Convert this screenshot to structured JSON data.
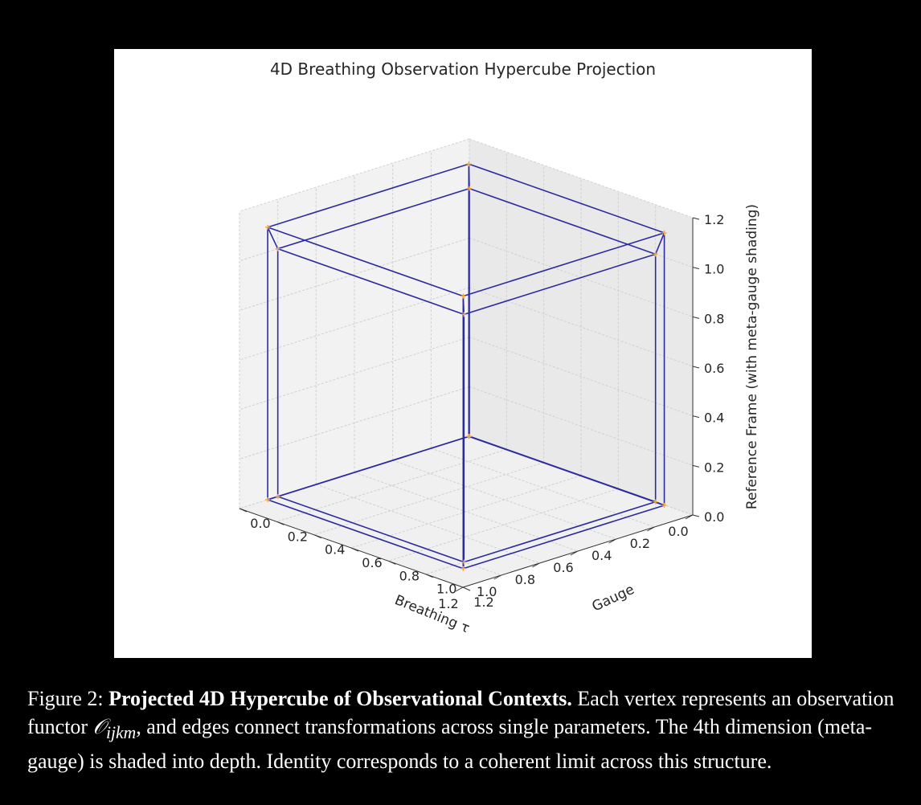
{
  "chart_data": {
    "type": "scatter",
    "title": "4D Breathing Observation Hypercube Projection",
    "xlabel": "Breathing τ",
    "ylabel": "Gauge",
    "zlabel": "Reference Frame (with meta-gauge shading)",
    "x_ticks": [
      "0.0",
      "0.2",
      "0.4",
      "0.6",
      "0.8",
      "1.0",
      "1.2"
    ],
    "y_ticks": [
      "0.0",
      "0.2",
      "0.4",
      "0.6",
      "0.8",
      "1.0",
      "1.2"
    ],
    "z_ticks": [
      "0.0",
      "0.2",
      "0.4",
      "0.6",
      "0.8",
      "1.0",
      "1.2"
    ],
    "xlim": [
      0,
      1.2
    ],
    "ylim": [
      0,
      1.2
    ],
    "zlim": [
      0,
      1.2
    ],
    "grid": true,
    "edge_color": "#2b2ba0",
    "vertex_color": "#f5a742",
    "vertices": [
      {
        "x": 0,
        "y": 0,
        "z": 0
      },
      {
        "x": 1,
        "y": 0,
        "z": 0
      },
      {
        "x": 0,
        "y": 1,
        "z": 0
      },
      {
        "x": 1,
        "y": 1,
        "z": 0
      },
      {
        "x": 0,
        "y": 0,
        "z": 1
      },
      {
        "x": 1,
        "y": 0,
        "z": 1
      },
      {
        "x": 0,
        "y": 1,
        "z": 1
      },
      {
        "x": 1,
        "y": 1,
        "z": 1
      },
      {
        "x": 0.1,
        "y": 0.1,
        "z": 0.05
      },
      {
        "x": 1.15,
        "y": 0.1,
        "z": 0.05
      },
      {
        "x": 0.1,
        "y": 1.15,
        "z": 0.05
      },
      {
        "x": 1.15,
        "y": 1.15,
        "z": 0.05
      },
      {
        "x": 0.1,
        "y": 0.1,
        "z": 1.15
      },
      {
        "x": 1.15,
        "y": 0.1,
        "z": 1.15
      },
      {
        "x": 0.1,
        "y": 1.15,
        "z": 1.15
      },
      {
        "x": 1.15,
        "y": 1.15,
        "z": 1.15
      }
    ],
    "edges": [
      [
        0,
        1
      ],
      [
        0,
        2
      ],
      [
        1,
        3
      ],
      [
        2,
        3
      ],
      [
        4,
        5
      ],
      [
        4,
        6
      ],
      [
        5,
        7
      ],
      [
        6,
        7
      ],
      [
        0,
        4
      ],
      [
        1,
        5
      ],
      [
        2,
        6
      ],
      [
        3,
        7
      ],
      [
        8,
        9
      ],
      [
        8,
        10
      ],
      [
        9,
        11
      ],
      [
        10,
        11
      ],
      [
        12,
        13
      ],
      [
        12,
        14
      ],
      [
        13,
        15
      ],
      [
        14,
        15
      ],
      [
        8,
        12
      ],
      [
        9,
        13
      ],
      [
        10,
        14
      ],
      [
        11,
        15
      ],
      [
        0,
        8
      ],
      [
        1,
        9
      ],
      [
        2,
        10
      ],
      [
        3,
        11
      ],
      [
        4,
        12
      ],
      [
        5,
        13
      ],
      [
        6,
        14
      ],
      [
        7,
        15
      ]
    ]
  },
  "caption": {
    "figure_label": "Figure 2:",
    "bold_title": "Projected 4D Hypercube of Observational Contexts.",
    "text_part1": "Each vertex represents an observation functor",
    "symbol": "𝒪",
    "subscript": "ijkm",
    "text_part2": ", and edges connect transformations across single parameters. The 4th dimension (meta-gauge) is shaded into depth. Identity corresponds to a coherent limit across this structure."
  }
}
